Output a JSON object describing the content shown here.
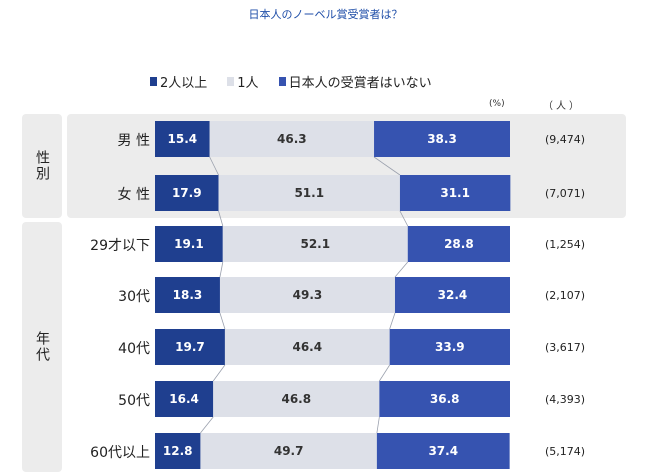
{
  "title": "日本人のノーベル賞受賞者は？",
  "legend": [
    {
      "label": "2人以上",
      "color": "#1f3f8f"
    },
    {
      "label": "1人",
      "color": "#dde0e8"
    },
    {
      "label": "日本人の受賞者はいない",
      "color": "#3653b0"
    }
  ],
  "unit_percent": "(%)",
  "unit_people": "（人）",
  "groups": [
    {
      "label": "性別"
    },
    {
      "label": "年代"
    }
  ],
  "chart_data": {
    "type": "bar",
    "orientation": "horizontal-stacked-100",
    "title": "日本人のノーベル賞受賞者は？",
    "series": [
      {
        "name": "2人以上",
        "values": [
          15.4,
          17.9,
          19.1,
          18.3,
          19.7,
          16.4,
          12.8
        ]
      },
      {
        "name": "1人",
        "values": [
          46.3,
          51.1,
          52.1,
          49.3,
          46.4,
          46.8,
          49.7
        ]
      },
      {
        "name": "日本人の受賞者はいない",
        "values": [
          38.3,
          31.1,
          28.8,
          32.4,
          33.9,
          36.8,
          37.4
        ]
      }
    ],
    "categories": [
      "男 性",
      "女 性",
      "29才以下",
      "30代",
      "40代",
      "50代",
      "60代以上"
    ],
    "n": [
      "(9,474)",
      "(7,071)",
      "(1,254)",
      "(2,107)",
      "(3,617)",
      "(4,393)",
      "(5,174)"
    ],
    "group_of_category": [
      0,
      0,
      1,
      1,
      1,
      1,
      1
    ],
    "xlim": [
      0,
      100
    ],
    "legend_position": "top"
  }
}
